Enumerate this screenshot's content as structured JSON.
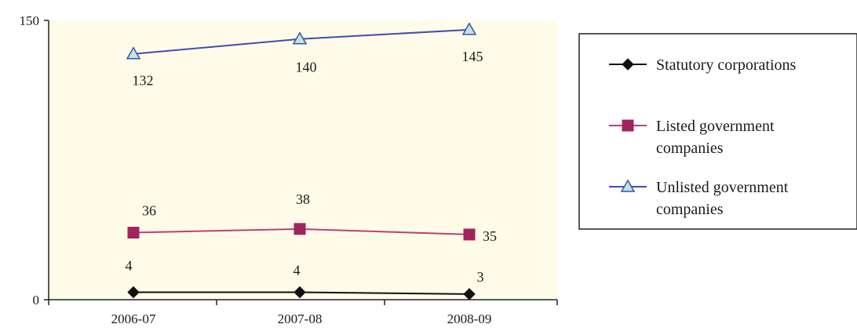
{
  "chart_data": {
    "type": "line",
    "title": "",
    "xlabel": "",
    "ylabel": "",
    "categories": [
      "2006-07",
      "2007-08",
      "2008-09"
    ],
    "ylim": [
      0,
      150
    ],
    "y_ticks": [
      "0",
      "150"
    ],
    "grid": false,
    "plot_background": "#fefce8",
    "legend_position": "right",
    "series": [
      {
        "name": "Statutory corporations",
        "values": [
          4,
          4,
          3
        ],
        "data_labels": [
          "4",
          "4",
          "3"
        ],
        "color": "#111111",
        "marker": "diamond",
        "marker_color": "#111111",
        "legend_lines": [
          "Statutory corporations"
        ]
      },
      {
        "name": "Listed government companies",
        "values": [
          36,
          38,
          35
        ],
        "data_labels": [
          "36",
          "38",
          "35"
        ],
        "color": "#b8417a",
        "marker": "square",
        "marker_color": "#a0245e",
        "legend_lines": [
          "Listed government",
          "companies"
        ]
      },
      {
        "name": "Unlisted government companies",
        "values": [
          132,
          140,
          145
        ],
        "data_labels": [
          "132",
          "140",
          "145"
        ],
        "color": "#3e4fb0",
        "marker": "triangle",
        "marker_color": "#bfe6dc",
        "legend_lines": [
          "Unlisted government",
          "companies"
        ]
      }
    ]
  }
}
